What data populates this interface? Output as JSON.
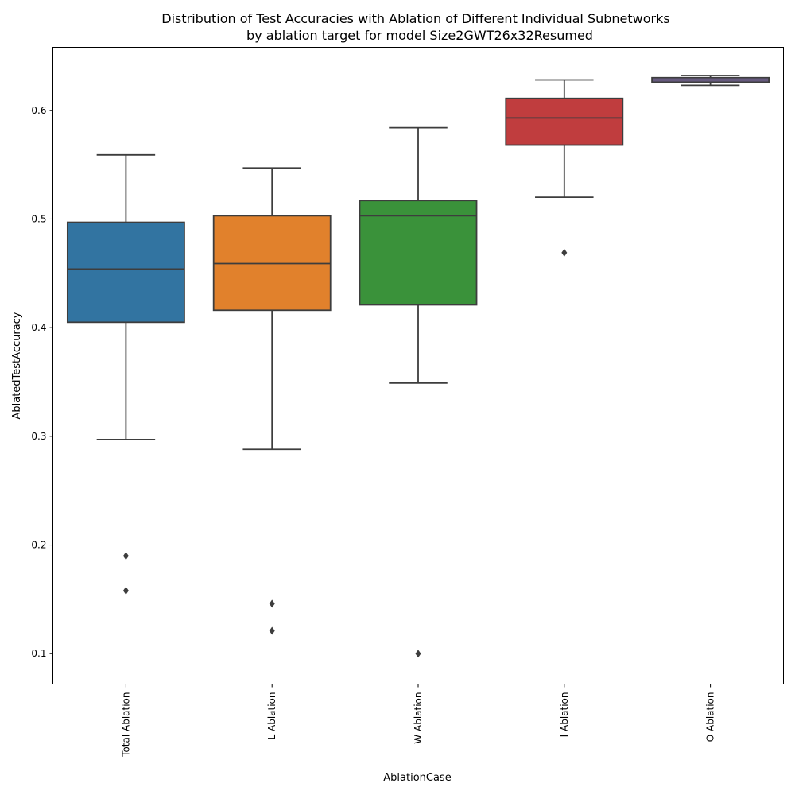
{
  "chart_data": {
    "type": "boxplot",
    "title": "Distribution of Test Accuracies with Ablation of Different Individual Subnetworks",
    "subtitle": "by ablation target for model Size2GWT26x32Resumed",
    "xlabel": "AblationCase",
    "ylabel": "AblatedTestAccuracy",
    "ylim": [
      0.072,
      0.658
    ],
    "yticks": [
      0.1,
      0.2,
      0.3,
      0.4,
      0.5,
      0.6
    ],
    "ytick_labels": [
      "0.1",
      "0.2",
      "0.3",
      "0.4",
      "0.5",
      "0.6"
    ],
    "categories": [
      "Total Ablation",
      "L Ablation",
      "W Ablation",
      "I Ablation",
      "O Ablation"
    ],
    "boxes": [
      {
        "category": "Total Ablation",
        "color": "#3274a1",
        "whisker_low": 0.297,
        "q1": 0.405,
        "median": 0.454,
        "q3": 0.497,
        "whisker_high": 0.559,
        "outliers": [
          0.19,
          0.158
        ]
      },
      {
        "category": "L Ablation",
        "color": "#e1812c",
        "whisker_low": 0.288,
        "q1": 0.416,
        "median": 0.459,
        "q3": 0.503,
        "whisker_high": 0.547,
        "outliers": [
          0.146,
          0.121
        ]
      },
      {
        "category": "W Ablation",
        "color": "#3a923a",
        "whisker_low": 0.349,
        "q1": 0.421,
        "median": 0.503,
        "q3": 0.517,
        "whisker_high": 0.584,
        "outliers": [
          0.1
        ]
      },
      {
        "category": "I Ablation",
        "color": "#c03d3e",
        "whisker_low": 0.52,
        "q1": 0.568,
        "median": 0.593,
        "q3": 0.611,
        "whisker_high": 0.628,
        "outliers": [
          0.469
        ]
      },
      {
        "category": "O Ablation",
        "color": "#7f6ca5",
        "whisker_low": 0.623,
        "q1": 0.626,
        "median": 0.628,
        "q3": 0.63,
        "whisker_high": 0.632,
        "outliers": []
      }
    ],
    "grid": false,
    "legend": "none"
  }
}
